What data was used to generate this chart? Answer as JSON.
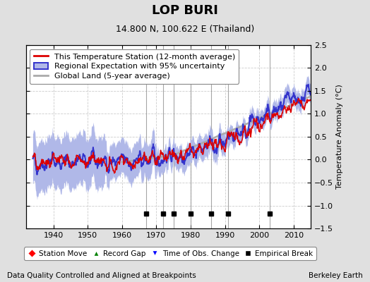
{
  "title": "LOP BURI",
  "subtitle": "14.800 N, 100.622 E (Thailand)",
  "ylabel": "Temperature Anomaly (°C)",
  "footer_left": "Data Quality Controlled and Aligned at Breakpoints",
  "footer_right": "Berkeley Earth",
  "xlim": [
    1932,
    2015
  ],
  "ylim": [
    -1.5,
    2.5
  ],
  "yticks": [
    -1.5,
    -1.0,
    -0.5,
    0.0,
    0.5,
    1.0,
    1.5,
    2.0,
    2.5
  ],
  "xticks": [
    1940,
    1950,
    1960,
    1970,
    1980,
    1990,
    2000,
    2010
  ],
  "empirical_breaks": [
    1967,
    1972,
    1975,
    1980,
    1986,
    1991,
    2003
  ],
  "background_color": "#e0e0e0",
  "plot_bg_color": "#ffffff",
  "grid_color": "#cccccc",
  "station_color": "#dd0000",
  "regional_color": "#3333cc",
  "uncertainty_color": "#b0b8e8",
  "global_color": "#aaaaaa",
  "vline_color": "#888888",
  "title_fontsize": 13,
  "subtitle_fontsize": 9,
  "legend_fontsize": 8,
  "tick_fontsize": 8,
  "ylabel_fontsize": 8,
  "footer_fontsize": 7.5,
  "break_marker_y": -1.18
}
